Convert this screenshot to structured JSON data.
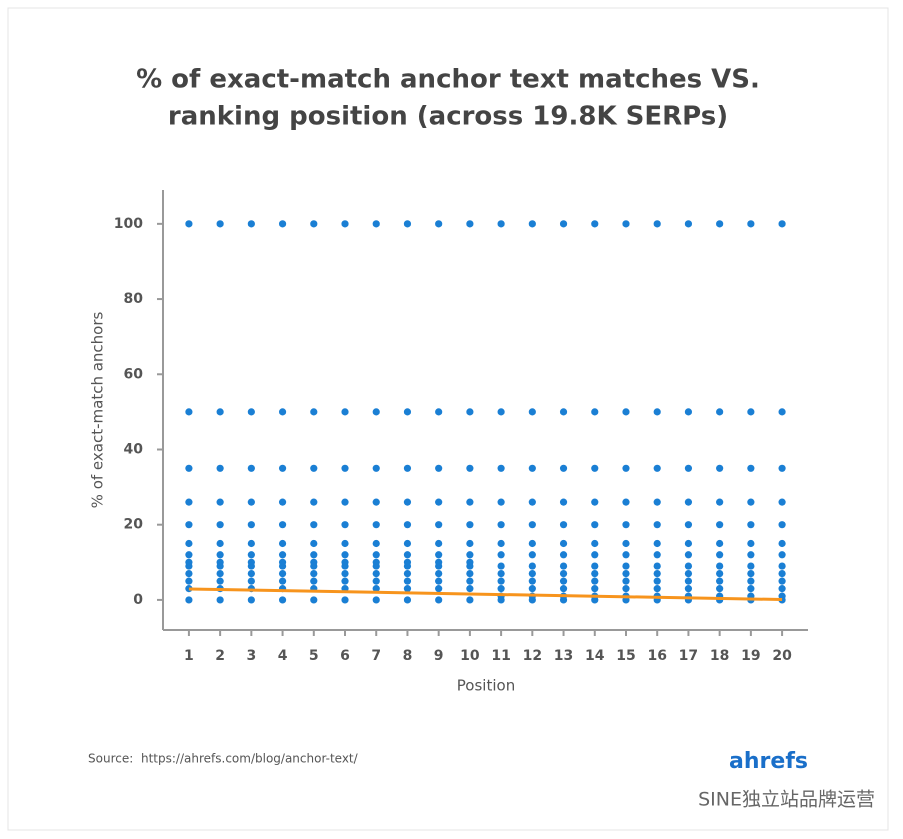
{
  "chart_data": {
    "type": "scatter",
    "title": [
      "% of exact-match anchor text matches VS.",
      "ranking position (across 19.8K SERPs)"
    ],
    "xlabel": "Position",
    "ylabel": "% of exact-match anchors",
    "xlim": [
      0.17,
      20.83
    ],
    "ylim": [
      -8,
      109
    ],
    "xticks": [
      1,
      2,
      3,
      4,
      5,
      6,
      7,
      8,
      9,
      10,
      11,
      12,
      13,
      14,
      15,
      16,
      17,
      18,
      19,
      20
    ],
    "yticks": [
      0,
      20,
      40,
      60,
      80,
      100
    ],
    "series": [
      {
        "color": "#1a7fd4",
        "x": [
          1,
          1,
          1,
          1,
          1,
          1,
          1,
          1,
          1,
          1,
          1,
          1,
          1,
          2,
          2,
          2,
          2,
          2,
          2,
          2,
          2,
          2,
          2,
          2,
          2,
          2,
          3,
          3,
          3,
          3,
          3,
          3,
          3,
          3,
          3,
          3,
          3,
          3,
          3,
          4,
          4,
          4,
          4,
          4,
          4,
          4,
          4,
          4,
          4,
          4,
          4,
          4,
          5,
          5,
          5,
          5,
          5,
          5,
          5,
          5,
          5,
          5,
          5,
          5,
          5,
          6,
          6,
          6,
          6,
          6,
          6,
          6,
          6,
          6,
          6,
          6,
          6,
          6,
          7,
          7,
          7,
          7,
          7,
          7,
          7,
          7,
          7,
          7,
          7,
          7,
          7,
          8,
          8,
          8,
          8,
          8,
          8,
          8,
          8,
          8,
          8,
          8,
          8,
          8,
          9,
          9,
          9,
          9,
          9,
          9,
          9,
          9,
          9,
          9,
          9,
          9,
          9,
          10,
          10,
          10,
          10,
          10,
          10,
          10,
          10,
          10,
          10,
          10,
          10,
          10,
          11,
          11,
          11,
          11,
          11,
          11,
          11,
          11,
          11,
          11,
          11,
          11,
          11,
          12,
          12,
          12,
          12,
          12,
          12,
          12,
          12,
          12,
          12,
          12,
          12,
          12,
          13,
          13,
          13,
          13,
          13,
          13,
          13,
          13,
          13,
          13,
          13,
          13,
          13,
          14,
          14,
          14,
          14,
          14,
          14,
          14,
          14,
          14,
          14,
          14,
          14,
          14,
          15,
          15,
          15,
          15,
          15,
          15,
          15,
          15,
          15,
          15,
          15,
          15,
          15,
          16,
          16,
          16,
          16,
          16,
          16,
          16,
          16,
          16,
          16,
          16,
          16,
          16,
          17,
          17,
          17,
          17,
          17,
          17,
          17,
          17,
          17,
          17,
          17,
          17,
          17,
          18,
          18,
          18,
          18,
          18,
          18,
          18,
          18,
          18,
          18,
          18,
          18,
          18,
          19,
          19,
          19,
          19,
          19,
          19,
          19,
          19,
          19,
          19,
          19,
          19,
          19,
          20,
          20,
          20,
          20,
          20,
          20,
          20,
          20,
          20,
          20,
          20,
          20,
          20
        ],
        "values": [
          0,
          3,
          5,
          7,
          9,
          10,
          12,
          15,
          20,
          26,
          35,
          50,
          100,
          0,
          3,
          5,
          7,
          9,
          10,
          12,
          15,
          20,
          26,
          35,
          50,
          100,
          0,
          3,
          5,
          7,
          9,
          10,
          12,
          15,
          20,
          26,
          35,
          50,
          100,
          0,
          3,
          5,
          7,
          9,
          10,
          12,
          15,
          20,
          26,
          35,
          50,
          100,
          0,
          3,
          5,
          7,
          9,
          10,
          12,
          15,
          20,
          26,
          35,
          50,
          100,
          0,
          3,
          5,
          7,
          9,
          10,
          12,
          15,
          20,
          26,
          35,
          50,
          100,
          0,
          3,
          5,
          7,
          9,
          10,
          12,
          15,
          20,
          26,
          35,
          50,
          100,
          0,
          3,
          5,
          7,
          9,
          10,
          12,
          15,
          20,
          26,
          35,
          50,
          100,
          0,
          3,
          5,
          7,
          9,
          10,
          12,
          15,
          20,
          26,
          35,
          50,
          100,
          0,
          3,
          5,
          7,
          9,
          10,
          12,
          15,
          20,
          26,
          35,
          50,
          100,
          0,
          1,
          3,
          5,
          7,
          9,
          12,
          15,
          20,
          26,
          35,
          50,
          100,
          0,
          1,
          3,
          5,
          7,
          9,
          12,
          15,
          20,
          26,
          35,
          50,
          100,
          0,
          1,
          3,
          5,
          7,
          9,
          12,
          15,
          20,
          26,
          35,
          50,
          100,
          0,
          1,
          3,
          5,
          7,
          9,
          12,
          15,
          20,
          26,
          35,
          50,
          100,
          0,
          1,
          3,
          5,
          7,
          9,
          12,
          15,
          20,
          26,
          35,
          50,
          100,
          0,
          1,
          3,
          5,
          7,
          9,
          12,
          15,
          20,
          26,
          35,
          50,
          100,
          0,
          1,
          3,
          5,
          7,
          9,
          12,
          15,
          20,
          26,
          35,
          50,
          100,
          0,
          1,
          3,
          5,
          7,
          9,
          12,
          15,
          20,
          26,
          35,
          50,
          100,
          0,
          1,
          3,
          5,
          7,
          9,
          12,
          15,
          20,
          26,
          35,
          50,
          100,
          0,
          1,
          3,
          5,
          7,
          9,
          12,
          15,
          20,
          26,
          35,
          50,
          100
        ]
      }
    ],
    "trendline": {
      "color": "#f7941d",
      "x": [
        1,
        20
      ],
      "values": [
        2.9,
        0.1
      ]
    }
  },
  "source_label": "Source:",
  "source_url": "https://ahrefs.com/blog/anchor-text/",
  "logo": "ahrefs",
  "watermark": "SINE独立站品牌运营"
}
